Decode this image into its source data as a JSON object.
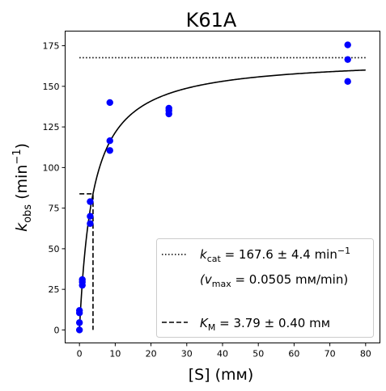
{
  "chart_data": {
    "type": "scatter",
    "title": "K61A",
    "xlabel": "[S] (mм)",
    "ylabel_main": "k",
    "ylabel_sub": "obs",
    "ylabel_unit_open": "(min",
    "ylabel_unit_exp": "−1",
    "ylabel_unit_close": ")",
    "xlim": [
      -4,
      84
    ],
    "ylim": [
      -8,
      184
    ],
    "xticks": [
      0,
      10,
      20,
      30,
      40,
      50,
      60,
      70,
      80
    ],
    "yticks": [
      0,
      25,
      50,
      75,
      100,
      125,
      150,
      175
    ],
    "grid": false,
    "legend_placement": "lower-right",
    "colors": {
      "points": "#0000ff",
      "lines": "#000000"
    },
    "series": [
      {
        "type": "scatter",
        "points": [
          [
            0,
            0
          ],
          [
            0,
            4.5
          ],
          [
            0,
            10.5
          ],
          [
            0,
            12
          ],
          [
            0.8,
            27.5
          ],
          [
            0.8,
            29.5
          ],
          [
            0.8,
            31
          ],
          [
            3,
            65.5
          ],
          [
            3,
            70
          ],
          [
            3,
            79
          ],
          [
            8.5,
            110.5
          ],
          [
            8.5,
            116.5
          ],
          [
            8.5,
            140
          ],
          [
            25,
            133
          ],
          [
            25,
            135
          ],
          [
            25,
            136.5
          ],
          [
            75,
            153
          ],
          [
            75,
            166.5
          ],
          [
            75,
            175.5
          ]
        ]
      },
      {
        "type": "line",
        "style": "solid",
        "model": "michaelis-menten",
        "kcat": 167.6,
        "km": 3.79,
        "x_range": [
          0,
          80
        ]
      },
      {
        "type": "line",
        "style": "dotted",
        "points": [
          [
            0,
            167.6
          ],
          [
            80,
            167.6
          ]
        ]
      },
      {
        "type": "line",
        "style": "dashed",
        "points": [
          [
            0,
            83.8
          ],
          [
            3.79,
            83.8
          ],
          [
            3.79,
            0
          ]
        ]
      }
    ],
    "legend": [
      {
        "style": "dotted",
        "label_main": "k",
        "label_sub": "cat",
        "label_rest": " = 167.6 ± 4.4 min",
        "label_exp": "−1"
      },
      {
        "style": "none",
        "label_main": "(v",
        "label_sub": "max",
        "label_rest": " = 0.0505 mм/min)"
      },
      {
        "style": "dashed",
        "label_main": "K",
        "label_sub": "M",
        "label_rest": " = 3.79 ± 0.40 mм"
      }
    ]
  }
}
